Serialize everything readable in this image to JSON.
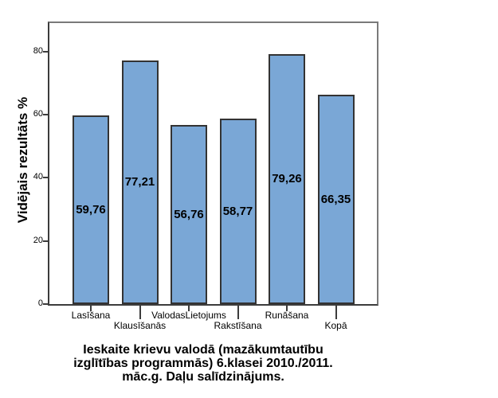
{
  "chart_data": {
    "type": "bar",
    "title": "Ieskaite krievu valodā (mazākumtautību izglītības programmās) 6.klasei 2010./2011. māc.g. Daļu salīdzinājums.",
    "title_lines": [
      "Ieskaite krievu valodā (mazākumtautību",
      "izglītības programmās) 6.klasei 2010./2011.",
      "māc.g. Daļu salīdzinājums."
    ],
    "ylabel": "Vidējais rezultāts %",
    "xlabel": "",
    "categories": [
      "Lasīšana",
      "Klausīšanās",
      "ValodasLietojums",
      "Rakstīšana",
      "Runāšana",
      "Kopā"
    ],
    "values": [
      59.76,
      77.21,
      56.76,
      58.77,
      79.26,
      66.35
    ],
    "value_labels": [
      "59,76",
      "77,21",
      "56,76",
      "58,77",
      "79,26",
      "66,35"
    ],
    "yticks": [
      0,
      20,
      40,
      60,
      80
    ],
    "ylim": [
      0,
      89
    ],
    "grid": false,
    "legend": "none",
    "staggered_categories": true,
    "value_label_position": "inside-middle",
    "colors": {
      "bar_fill": "#7AA7D6",
      "bar_border": "#333333",
      "frame_gray": "#7A7A7A",
      "axis_dark": "#3C3C3C",
      "text": "#000000",
      "background": "#FFFFFF"
    }
  }
}
